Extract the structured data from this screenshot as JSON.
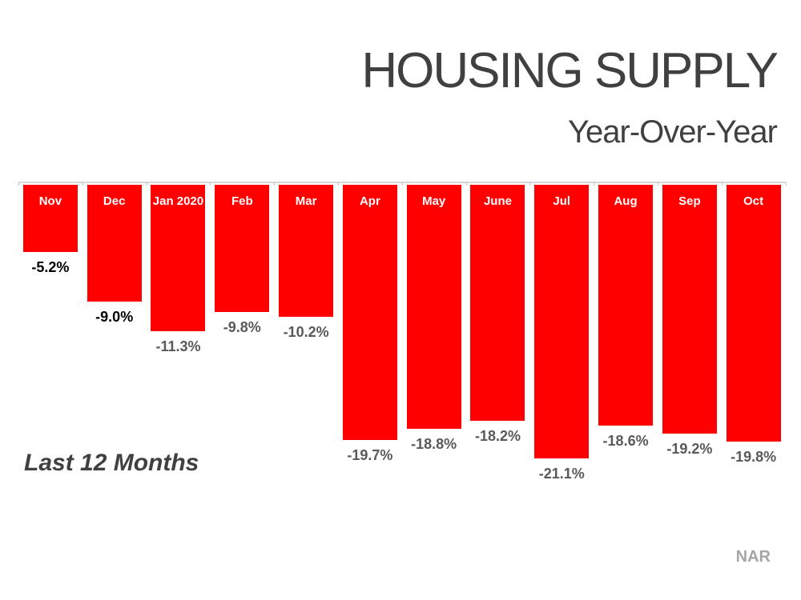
{
  "header": {
    "title": "HOUSING SUPPLY",
    "subtitle": "Year-Over-Year"
  },
  "footer": {
    "footnote": "Last 12 Months",
    "source": "NAR"
  },
  "colors": {
    "bar": "#ff0000",
    "title_text": "#404040",
    "month_label_text": "#ffffff",
    "value_label_black": "#000000",
    "value_label_gray": "#595959",
    "axis_line": "#d8d8d8",
    "source_text": "#a6a6a6"
  },
  "chart_data": {
    "type": "bar",
    "title": "HOUSING SUPPLY",
    "subtitle": "Year-Over-Year",
    "categories": [
      "Nov",
      "Dec",
      "Jan 2020",
      "Feb",
      "Mar",
      "Apr",
      "May",
      "June",
      "Jul",
      "Aug",
      "Sep",
      "Oct"
    ],
    "values": [
      -5.2,
      -9.0,
      -11.3,
      -9.8,
      -10.2,
      -19.7,
      -18.8,
      -18.2,
      -21.1,
      -18.6,
      -19.2,
      -19.8
    ],
    "labels": [
      "-5.2%",
      "-9.0%",
      "-11.3%",
      "-9.8%",
      "-10.2%",
      "-19.7%",
      "-18.8%",
      "-18.2%",
      "-21.1%",
      "-18.6%",
      "-19.2%",
      "-19.8%"
    ],
    "label_colors": [
      "#000000",
      "#000000",
      "#595959",
      "#595959",
      "#595959",
      "#595959",
      "#595959",
      "#595959",
      "#595959",
      "#595959",
      "#595959",
      "#595959"
    ],
    "bar_color": "#ff0000",
    "xlabel": "",
    "ylabel": "",
    "ylim": [
      -21.1,
      0
    ],
    "grid": false,
    "legend": false,
    "orientation": "bars-hang-down-from-top-baseline",
    "bar_label_position": "month-inside-top, value-below-bar"
  }
}
